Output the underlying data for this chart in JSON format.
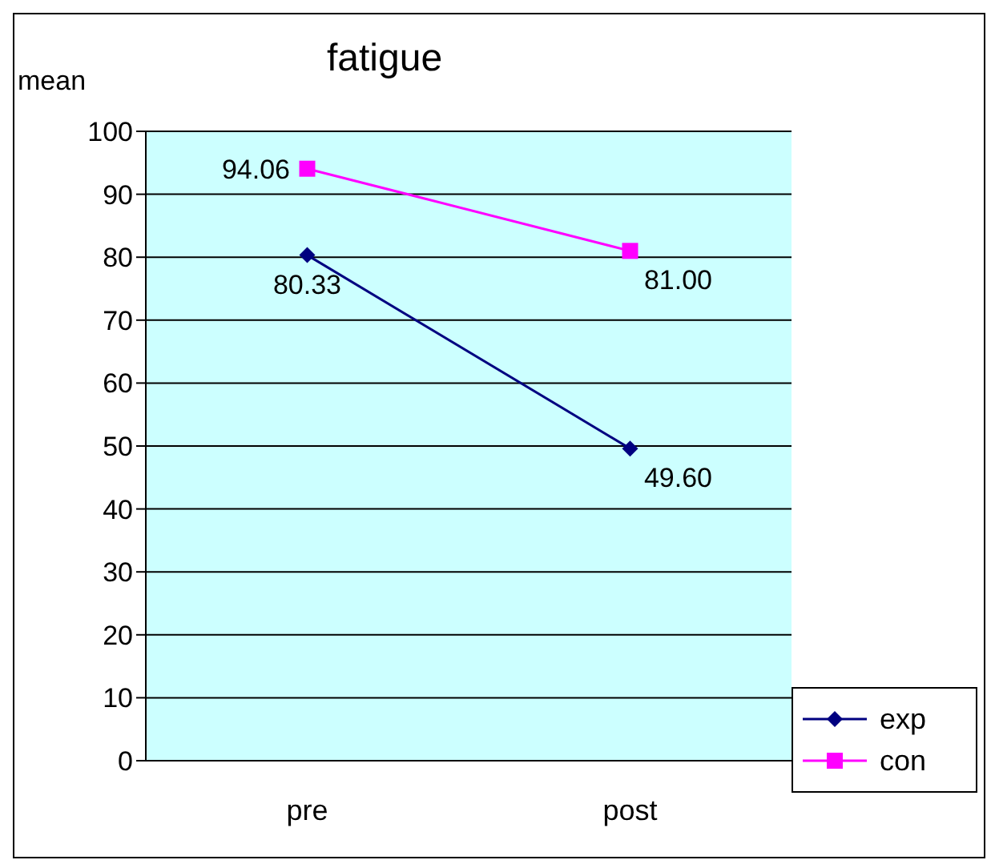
{
  "chart_data": {
    "type": "line",
    "title": "fatigue",
    "ylabel": "mean",
    "categories": [
      "pre",
      "post"
    ],
    "series": [
      {
        "name": "exp",
        "color": "#000080",
        "marker": "diamond",
        "values": [
          80.33,
          49.6
        ],
        "value_labels": [
          "80.33",
          "49.60"
        ]
      },
      {
        "name": "con",
        "color": "#ff00ff",
        "marker": "square",
        "values": [
          94.06,
          81.0
        ],
        "value_labels": [
          "94.06",
          "81.00"
        ]
      }
    ],
    "ylim": [
      0,
      100
    ],
    "yticks": [
      0,
      10,
      20,
      30,
      40,
      50,
      60,
      70,
      80,
      90,
      100
    ],
    "grid": "y",
    "legend": "bottom right",
    "line_style": "solid"
  }
}
